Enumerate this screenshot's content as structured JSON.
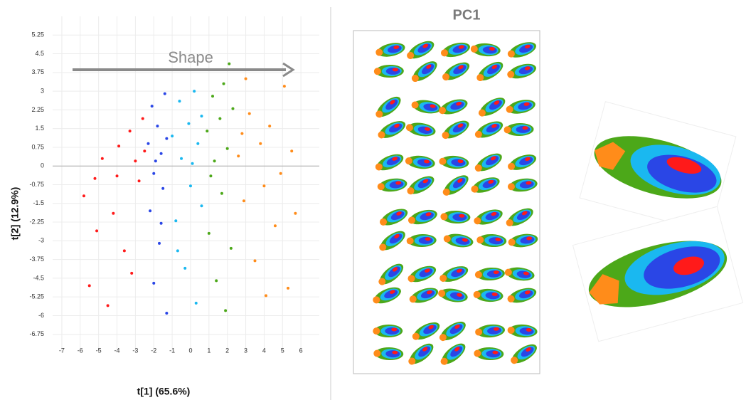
{
  "chart_data": {
    "type": "scatter",
    "xlabel": "t[1] (65.6%)",
    "ylabel": "t[2] (12.9%)",
    "annotation": "Shape",
    "panel_title": "PC1",
    "xlim": [
      -7.5,
      7
    ],
    "ylim": [
      -7.5,
      6
    ],
    "xticks": [
      -7,
      -6,
      -5,
      -4,
      -3,
      -2,
      -1,
      0,
      1,
      2,
      3,
      4,
      5,
      6
    ],
    "yticks": [
      5.25,
      4.5,
      3.75,
      3,
      2.25,
      1.5,
      0.75,
      0,
      -0.75,
      -1.5,
      -2.25,
      -3,
      -3.75,
      -4.5,
      -5.25,
      -6,
      -6.75
    ],
    "grid": true,
    "series": [
      {
        "color": "#ff1a1a",
        "x": [
          -5.8,
          -5.5,
          -5.1,
          -4.8,
          -4.5,
          -4.2,
          -3.9,
          -3.6,
          -3.3,
          -3.0,
          -2.8,
          -2.6,
          -3.2,
          -4.0,
          -2.5,
          -5.2
        ],
        "values": [
          -1.2,
          -4.8,
          -2.6,
          0.3,
          -5.6,
          -1.9,
          0.8,
          -3.4,
          1.4,
          0.2,
          -0.6,
          1.9,
          -4.3,
          -0.4,
          0.6,
          -0.5
        ]
      },
      {
        "color": "#2a46e6",
        "x": [
          -2.3,
          -2.2,
          -2.1,
          -2.0,
          -1.9,
          -1.8,
          -1.7,
          -1.6,
          -1.5,
          -1.4,
          -1.3,
          -1.3,
          -2.0,
          -1.6
        ],
        "values": [
          0.9,
          -1.8,
          2.4,
          -4.7,
          0.2,
          1.6,
          -3.1,
          0.5,
          -0.9,
          2.9,
          -5.9,
          1.1,
          -0.3,
          -2.3
        ]
      },
      {
        "color": "#1ab8f0",
        "x": [
          -1.0,
          -0.8,
          -0.6,
          -0.5,
          -0.3,
          -0.1,
          0.0,
          0.2,
          0.3,
          0.4,
          0.6,
          0.6,
          -0.7,
          0.1
        ],
        "values": [
          1.2,
          -2.2,
          2.6,
          0.3,
          -4.1,
          1.7,
          -0.8,
          3.0,
          -5.5,
          0.9,
          -1.6,
          2.0,
          -3.4,
          0.1
        ]
      },
      {
        "color": "#4ca819",
        "x": [
          0.9,
          1.0,
          1.2,
          1.3,
          1.4,
          1.6,
          1.7,
          1.8,
          1.9,
          2.0,
          2.2,
          2.3,
          1.1,
          2.1
        ],
        "values": [
          1.4,
          -2.7,
          2.8,
          0.2,
          -4.6,
          1.9,
          -1.1,
          3.3,
          -5.8,
          0.7,
          -3.3,
          2.3,
          -0.4,
          4.1
        ]
      },
      {
        "color": "#ff8c1a",
        "x": [
          2.6,
          2.9,
          3.2,
          3.5,
          3.8,
          4.1,
          4.3,
          4.6,
          4.9,
          5.1,
          5.3,
          5.5,
          3.0,
          4.0,
          5.7,
          2.8
        ],
        "values": [
          0.4,
          -1.4,
          2.1,
          -3.8,
          0.9,
          -5.2,
          1.6,
          -2.4,
          -0.3,
          3.2,
          -4.9,
          0.6,
          3.5,
          -0.8,
          -1.9,
          1.3
        ]
      }
    ]
  }
}
